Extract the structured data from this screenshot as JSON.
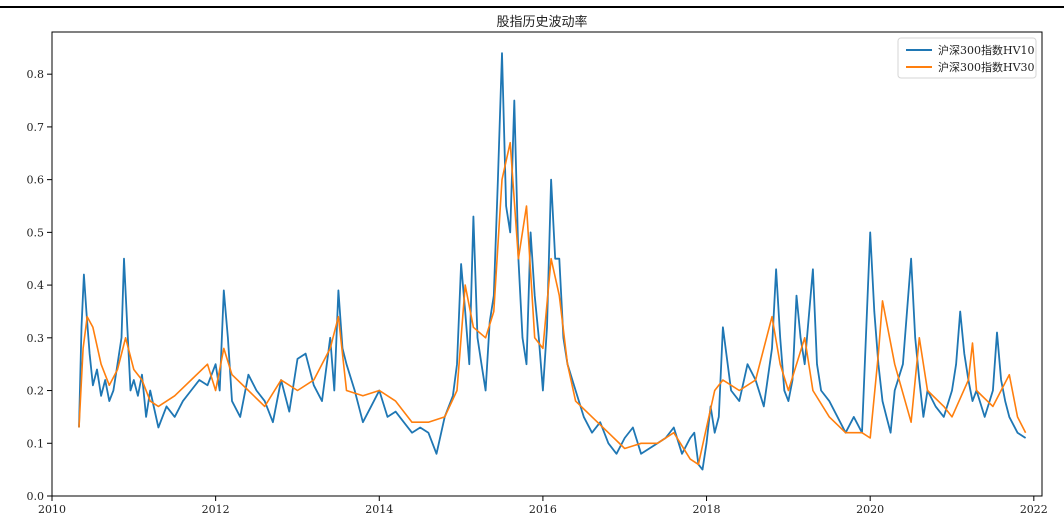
{
  "chart_data": {
    "type": "line",
    "title": "股指历史波动率",
    "xlabel": "",
    "ylabel": "",
    "xlim": [
      2010,
      2022.1
    ],
    "ylim": [
      0,
      0.88
    ],
    "x_ticks": [
      "2010",
      "2012",
      "2014",
      "2016",
      "2018",
      "2020",
      "2022"
    ],
    "y_ticks": [
      "0.0",
      "0.1",
      "0.2",
      "0.3",
      "0.4",
      "0.5",
      "0.6",
      "0.7",
      "0.8"
    ],
    "grid": false,
    "legend_position": "top-right",
    "series": [
      {
        "name": "沪深300指数HV10",
        "color": "#1f77b4",
        "x": [
          2010.33,
          2010.36,
          2010.39,
          2010.42,
          2010.46,
          2010.5,
          2010.55,
          2010.6,
          2010.65,
          2010.7,
          2010.75,
          2010.8,
          2010.85,
          2010.88,
          2010.92,
          2010.96,
          2011.0,
          2011.05,
          2011.1,
          2011.15,
          2011.2,
          2011.3,
          2011.4,
          2011.5,
          2011.6,
          2011.7,
          2011.8,
          2011.9,
          2012.0,
          2012.05,
          2012.1,
          2012.15,
          2012.2,
          2012.3,
          2012.4,
          2012.5,
          2012.6,
          2012.7,
          2012.8,
          2012.9,
          2013.0,
          2013.1,
          2013.2,
          2013.3,
          2013.4,
          2013.45,
          2013.5,
          2013.55,
          2013.6,
          2013.7,
          2013.8,
          2013.9,
          2014.0,
          2014.1,
          2014.2,
          2014.3,
          2014.4,
          2014.5,
          2014.6,
          2014.7,
          2014.8,
          2014.9,
          2014.95,
          2015.0,
          2015.05,
          2015.1,
          2015.15,
          2015.2,
          2015.25,
          2015.3,
          2015.35,
          2015.4,
          2015.45,
          2015.5,
          2015.55,
          2015.6,
          2015.65,
          2015.7,
          2015.75,
          2015.8,
          2015.85,
          2015.9,
          2015.95,
          2016.0,
          2016.05,
          2016.1,
          2016.15,
          2016.2,
          2016.25,
          2016.3,
          2016.4,
          2016.5,
          2016.6,
          2016.7,
          2016.8,
          2016.9,
          2017.0,
          2017.1,
          2017.2,
          2017.3,
          2017.4,
          2017.5,
          2017.6,
          2017.7,
          2017.8,
          2017.85,
          2017.9,
          2017.95,
          2018.0,
          2018.05,
          2018.1,
          2018.15,
          2018.2,
          2018.3,
          2018.4,
          2018.5,
          2018.6,
          2018.7,
          2018.8,
          2018.85,
          2018.9,
          2018.95,
          2019.0,
          2019.05,
          2019.1,
          2019.15,
          2019.2,
          2019.3,
          2019.35,
          2019.4,
          2019.5,
          2019.6,
          2019.7,
          2019.8,
          2019.9,
          2020.0,
          2020.05,
          2020.1,
          2020.15,
          2020.2,
          2020.25,
          2020.3,
          2020.4,
          2020.5,
          2020.55,
          2020.6,
          2020.65,
          2020.7,
          2020.8,
          2020.9,
          2021.0,
          2021.05,
          2021.1,
          2021.15,
          2021.2,
          2021.25,
          2021.3,
          2021.4,
          2021.5,
          2021.55,
          2021.6,
          2021.65,
          2021.7,
          2021.8,
          2021.9
        ],
        "y": [
          0.13,
          0.32,
          0.42,
          0.35,
          0.27,
          0.21,
          0.24,
          0.19,
          0.22,
          0.18,
          0.2,
          0.25,
          0.3,
          0.45,
          0.32,
          0.2,
          0.22,
          0.19,
          0.23,
          0.15,
          0.2,
          0.13,
          0.17,
          0.15,
          0.18,
          0.2,
          0.22,
          0.21,
          0.25,
          0.2,
          0.39,
          0.3,
          0.18,
          0.15,
          0.23,
          0.2,
          0.18,
          0.14,
          0.22,
          0.16,
          0.26,
          0.27,
          0.21,
          0.18,
          0.3,
          0.2,
          0.39,
          0.28,
          0.25,
          0.2,
          0.14,
          0.17,
          0.2,
          0.15,
          0.16,
          0.14,
          0.12,
          0.13,
          0.12,
          0.08,
          0.15,
          0.19,
          0.25,
          0.44,
          0.35,
          0.25,
          0.53,
          0.3,
          0.25,
          0.2,
          0.33,
          0.38,
          0.6,
          0.84,
          0.55,
          0.5,
          0.75,
          0.45,
          0.3,
          0.25,
          0.5,
          0.38,
          0.3,
          0.2,
          0.32,
          0.6,
          0.45,
          0.45,
          0.3,
          0.25,
          0.2,
          0.15,
          0.12,
          0.14,
          0.1,
          0.08,
          0.11,
          0.13,
          0.08,
          0.09,
          0.1,
          0.11,
          0.13,
          0.08,
          0.11,
          0.12,
          0.06,
          0.05,
          0.1,
          0.17,
          0.12,
          0.15,
          0.32,
          0.2,
          0.18,
          0.25,
          0.22,
          0.17,
          0.28,
          0.43,
          0.3,
          0.2,
          0.18,
          0.22,
          0.38,
          0.3,
          0.25,
          0.43,
          0.25,
          0.2,
          0.18,
          0.15,
          0.12,
          0.15,
          0.12,
          0.5,
          0.35,
          0.25,
          0.18,
          0.15,
          0.12,
          0.2,
          0.25,
          0.45,
          0.3,
          0.22,
          0.15,
          0.2,
          0.17,
          0.15,
          0.2,
          0.25,
          0.35,
          0.27,
          0.22,
          0.18,
          0.2,
          0.15,
          0.2,
          0.31,
          0.22,
          0.18,
          0.15,
          0.12,
          0.11
        ]
      },
      {
        "name": "沪深300指数HV30",
        "color": "#ff7f0e",
        "x": [
          2010.33,
          2010.38,
          2010.43,
          2010.5,
          2010.6,
          2010.7,
          2010.8,
          2010.9,
          2011.0,
          2011.1,
          2011.2,
          2011.3,
          2011.5,
          2011.7,
          2011.9,
          2012.0,
          2012.1,
          2012.2,
          2012.4,
          2012.6,
          2012.8,
          2013.0,
          2013.2,
          2013.4,
          2013.5,
          2013.6,
          2013.8,
          2014.0,
          2014.2,
          2014.4,
          2014.6,
          2014.8,
          2014.95,
          2015.05,
          2015.15,
          2015.3,
          2015.4,
          2015.5,
          2015.6,
          2015.7,
          2015.8,
          2015.9,
          2016.0,
          2016.1,
          2016.2,
          2016.3,
          2016.4,
          2016.6,
          2016.8,
          2017.0,
          2017.2,
          2017.4,
          2017.6,
          2017.8,
          2017.9,
          2018.0,
          2018.1,
          2018.2,
          2018.4,
          2018.6,
          2018.8,
          2018.9,
          2019.0,
          2019.2,
          2019.3,
          2019.5,
          2019.7,
          2019.9,
          2020.0,
          2020.1,
          2020.15,
          2020.3,
          2020.5,
          2020.6,
          2020.7,
          2020.9,
          2021.0,
          2021.2,
          2021.25,
          2021.3,
          2021.5,
          2021.6,
          2021.7,
          2021.8,
          2021.9
        ],
        "y": [
          0.13,
          0.28,
          0.34,
          0.32,
          0.25,
          0.21,
          0.24,
          0.3,
          0.24,
          0.22,
          0.18,
          0.17,
          0.19,
          0.22,
          0.25,
          0.2,
          0.28,
          0.23,
          0.2,
          0.17,
          0.22,
          0.2,
          0.22,
          0.28,
          0.34,
          0.2,
          0.19,
          0.2,
          0.18,
          0.14,
          0.14,
          0.15,
          0.2,
          0.4,
          0.32,
          0.3,
          0.35,
          0.6,
          0.67,
          0.45,
          0.55,
          0.3,
          0.28,
          0.45,
          0.38,
          0.25,
          0.18,
          0.15,
          0.12,
          0.09,
          0.1,
          0.1,
          0.12,
          0.07,
          0.06,
          0.13,
          0.2,
          0.22,
          0.2,
          0.22,
          0.34,
          0.25,
          0.2,
          0.3,
          0.2,
          0.15,
          0.12,
          0.12,
          0.11,
          0.27,
          0.37,
          0.25,
          0.14,
          0.3,
          0.2,
          0.17,
          0.15,
          0.22,
          0.29,
          0.2,
          0.17,
          0.2,
          0.23,
          0.15,
          0.12
        ]
      }
    ]
  }
}
